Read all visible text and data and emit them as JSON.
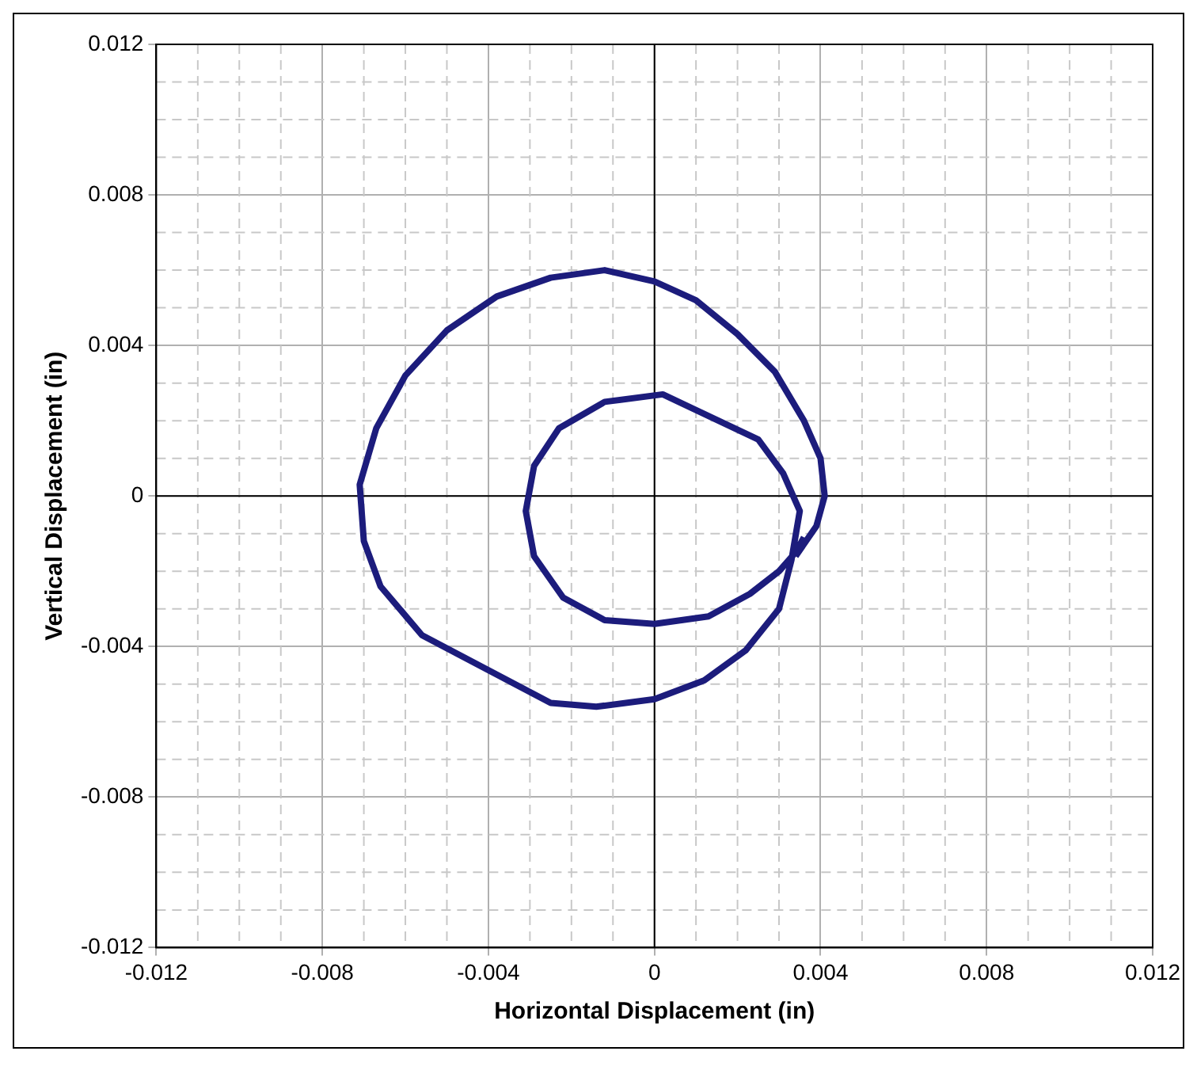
{
  "chart_data": {
    "type": "line",
    "xlabel": "Horizontal Displacement (in)",
    "ylabel": "Vertical Displacement (in)",
    "xlim": [
      -0.012,
      0.012
    ],
    "ylim": [
      -0.012,
      0.012
    ],
    "xticks": [
      -0.012,
      -0.008,
      -0.004,
      0,
      0.004,
      0.008,
      0.012
    ],
    "yticks": [
      -0.012,
      -0.008,
      -0.004,
      0,
      0.004,
      0.008,
      0.012
    ],
    "grid": true,
    "legend": false,
    "marker": "none",
    "line_style": "solid",
    "series": [
      {
        "color": "#1c1c7c",
        "x": [
          0.0034,
          0.0039,
          0.0041,
          0.004,
          0.0036,
          0.0029,
          0.002,
          0.001,
          0,
          -0.0012,
          -0.0025,
          -0.0038,
          -0.005,
          -0.006,
          -0.0067,
          -0.0071,
          -0.007,
          -0.0066,
          -0.0056,
          -0.0025,
          -0.0014,
          0,
          0.0012,
          0.0022,
          0.003,
          0.0033,
          0.0035,
          0.0031,
          0.0025,
          0.0002,
          -0.0012,
          -0.0023,
          -0.0029,
          -0.0031,
          -0.0029,
          -0.0022,
          -0.0012,
          0,
          0.0013,
          0.0023,
          0.003,
          0.0034,
          0.0036
        ],
        "values": [
          -0.0016,
          -0.0008,
          0,
          0.001,
          0.002,
          0.0033,
          0.0043,
          0.0052,
          0.0057,
          0.006,
          0.0058,
          0.0053,
          0.0044,
          0.0032,
          0.0018,
          0.0003,
          -0.0012,
          -0.0024,
          -0.0037,
          -0.0055,
          -0.0056,
          -0.0054,
          -0.0049,
          -0.0041,
          -0.003,
          -0.0017,
          -0.0004,
          0.0006,
          0.0015,
          0.0027,
          0.0025,
          0.0018,
          0.0008,
          -0.0004,
          -0.0016,
          -0.0027,
          -0.0033,
          -0.0034,
          -0.0032,
          -0.0026,
          -0.002,
          -0.0015,
          -0.0011
        ]
      }
    ]
  }
}
